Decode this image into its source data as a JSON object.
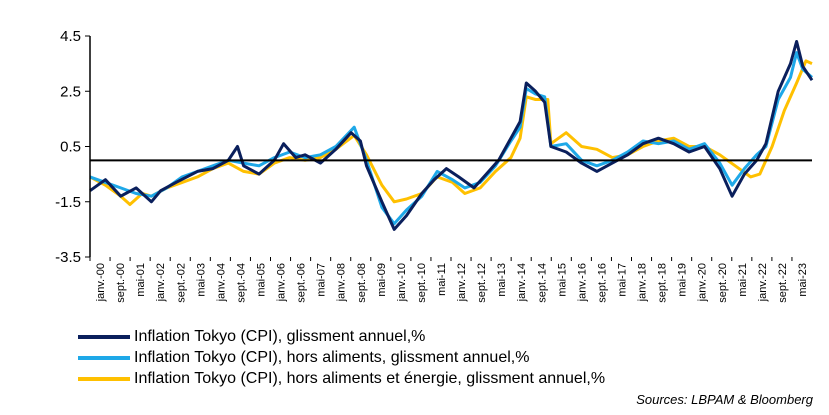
{
  "chart_data": {
    "type": "line",
    "title": "",
    "xlabel": "",
    "ylabel": "",
    "ylim": [
      -3.5,
      4.5
    ],
    "yticks": [
      -3.5,
      -1.5,
      0.5,
      2.5,
      4.5
    ],
    "ytick_labels": [
      "-3.5",
      "-1.5",
      "0.5",
      "2.5",
      "4.5"
    ],
    "x_range": [
      2000.0,
      2023.5
    ],
    "xtick_labels": [
      "janv.-00",
      "sept.-00",
      "mai-01",
      "janv.-02",
      "sept.-02",
      "mai-03",
      "janv.-04",
      "sept.-04",
      "mai-05",
      "janv.-06",
      "sept.-06",
      "mai-07",
      "janv.-08",
      "sept.-08",
      "mai-09",
      "janv.-10",
      "sept.-10",
      "mai-11",
      "janv.-12",
      "sept.-12",
      "mai-13",
      "janv.-14",
      "sept.-14",
      "mai-15",
      "janv.-16",
      "sept.-16",
      "mai-17",
      "janv.-18",
      "sept.-18",
      "mai-19",
      "janv.-20",
      "sept.-20",
      "mai-21",
      "janv.-22",
      "sept.-22",
      "mai-23"
    ],
    "reference_line": 0.0,
    "series": [
      {
        "name": "Inflation Tokyo (CPI), glissment annuel,%",
        "color": "#0a1f5c",
        "points": [
          [
            2000.0,
            -1.1
          ],
          [
            2000.5,
            -0.7
          ],
          [
            2001.0,
            -1.3
          ],
          [
            2001.5,
            -1.0
          ],
          [
            2002.0,
            -1.5
          ],
          [
            2002.3,
            -1.1
          ],
          [
            2002.8,
            -0.8
          ],
          [
            2003.5,
            -0.4
          ],
          [
            2004.0,
            -0.3
          ],
          [
            2004.5,
            0.0
          ],
          [
            2004.8,
            0.5
          ],
          [
            2005.0,
            -0.2
          ],
          [
            2005.5,
            -0.5
          ],
          [
            2006.0,
            0.0
          ],
          [
            2006.3,
            0.6
          ],
          [
            2006.7,
            0.1
          ],
          [
            2007.0,
            0.2
          ],
          [
            2007.5,
            -0.1
          ],
          [
            2008.0,
            0.4
          ],
          [
            2008.5,
            1.0
          ],
          [
            2008.8,
            0.7
          ],
          [
            2009.0,
            -0.2
          ],
          [
            2009.5,
            -1.5
          ],
          [
            2009.9,
            -2.5
          ],
          [
            2010.3,
            -2.0
          ],
          [
            2010.8,
            -1.2
          ],
          [
            2011.2,
            -0.7
          ],
          [
            2011.6,
            -0.3
          ],
          [
            2012.0,
            -0.6
          ],
          [
            2012.5,
            -1.0
          ],
          [
            2012.9,
            -0.5
          ],
          [
            2013.3,
            0.0
          ],
          [
            2013.7,
            0.8
          ],
          [
            2014.0,
            1.4
          ],
          [
            2014.2,
            2.8
          ],
          [
            2014.5,
            2.5
          ],
          [
            2014.8,
            2.1
          ],
          [
            2015.0,
            0.5
          ],
          [
            2015.5,
            0.3
          ],
          [
            2016.0,
            -0.1
          ],
          [
            2016.5,
            -0.4
          ],
          [
            2017.0,
            -0.1
          ],
          [
            2017.5,
            0.2
          ],
          [
            2018.0,
            0.6
          ],
          [
            2018.5,
            0.8
          ],
          [
            2019.0,
            0.6
          ],
          [
            2019.5,
            0.3
          ],
          [
            2020.0,
            0.5
          ],
          [
            2020.5,
            -0.3
          ],
          [
            2020.9,
            -1.3
          ],
          [
            2021.3,
            -0.5
          ],
          [
            2021.7,
            0.0
          ],
          [
            2022.0,
            0.6
          ],
          [
            2022.4,
            2.5
          ],
          [
            2022.8,
            3.5
          ],
          [
            2023.0,
            4.3
          ],
          [
            2023.2,
            3.4
          ],
          [
            2023.5,
            2.9
          ]
        ]
      },
      {
        "name": "Inflation Tokyo (CPI), hors aliments, glissment annuel,%",
        "color": "#1ea8e8",
        "points": [
          [
            2000.0,
            -0.6
          ],
          [
            2000.5,
            -0.8
          ],
          [
            2001.0,
            -1.0
          ],
          [
            2001.5,
            -1.2
          ],
          [
            2002.0,
            -1.3
          ],
          [
            2002.5,
            -1.0
          ],
          [
            2003.0,
            -0.6
          ],
          [
            2003.5,
            -0.4
          ],
          [
            2004.0,
            -0.2
          ],
          [
            2004.5,
            0.0
          ],
          [
            2005.0,
            -0.1
          ],
          [
            2005.5,
            -0.2
          ],
          [
            2006.0,
            0.1
          ],
          [
            2006.5,
            0.3
          ],
          [
            2007.0,
            0.1
          ],
          [
            2007.5,
            0.2
          ],
          [
            2008.0,
            0.5
          ],
          [
            2008.6,
            1.2
          ],
          [
            2009.0,
            0.0
          ],
          [
            2009.5,
            -1.7
          ],
          [
            2009.9,
            -2.3
          ],
          [
            2010.3,
            -1.8
          ],
          [
            2010.8,
            -1.3
          ],
          [
            2011.3,
            -0.4
          ],
          [
            2011.8,
            -0.7
          ],
          [
            2012.2,
            -1.0
          ],
          [
            2012.7,
            -0.8
          ],
          [
            2013.2,
            -0.2
          ],
          [
            2013.7,
            0.7
          ],
          [
            2014.0,
            1.2
          ],
          [
            2014.2,
            2.6
          ],
          [
            2014.5,
            2.4
          ],
          [
            2014.8,
            2.3
          ],
          [
            2015.0,
            0.5
          ],
          [
            2015.5,
            0.6
          ],
          [
            2016.0,
            0.0
          ],
          [
            2016.5,
            -0.2
          ],
          [
            2017.0,
            0.0
          ],
          [
            2017.5,
            0.3
          ],
          [
            2018.0,
            0.7
          ],
          [
            2018.5,
            0.6
          ],
          [
            2019.0,
            0.7
          ],
          [
            2019.5,
            0.4
          ],
          [
            2020.0,
            0.6
          ],
          [
            2020.5,
            -0.1
          ],
          [
            2020.9,
            -0.9
          ],
          [
            2021.3,
            -0.3
          ],
          [
            2021.7,
            0.2
          ],
          [
            2022.0,
            0.5
          ],
          [
            2022.4,
            2.2
          ],
          [
            2022.8,
            3.0
          ],
          [
            2023.0,
            3.9
          ],
          [
            2023.2,
            3.3
          ],
          [
            2023.5,
            3.0
          ]
        ]
      },
      {
        "name": "Inflation Tokyo (CPI), hors aliments et énergie, glissment annuel,%",
        "color": "#ffc000",
        "points": [
          [
            2000.0,
            -0.6
          ],
          [
            2000.5,
            -0.9
          ],
          [
            2001.0,
            -1.3
          ],
          [
            2001.3,
            -1.6
          ],
          [
            2001.7,
            -1.2
          ],
          [
            2002.0,
            -1.3
          ],
          [
            2002.5,
            -1.0
          ],
          [
            2003.0,
            -0.8
          ],
          [
            2003.5,
            -0.6
          ],
          [
            2004.0,
            -0.3
          ],
          [
            2004.5,
            -0.1
          ],
          [
            2005.0,
            -0.4
          ],
          [
            2005.5,
            -0.5
          ],
          [
            2006.0,
            -0.1
          ],
          [
            2006.5,
            0.1
          ],
          [
            2007.0,
            0.0
          ],
          [
            2007.5,
            0.1
          ],
          [
            2008.0,
            0.4
          ],
          [
            2008.6,
            0.9
          ],
          [
            2009.0,
            0.2
          ],
          [
            2009.5,
            -0.9
          ],
          [
            2009.9,
            -1.5
          ],
          [
            2010.3,
            -1.4
          ],
          [
            2010.8,
            -1.2
          ],
          [
            2011.3,
            -0.6
          ],
          [
            2011.8,
            -0.8
          ],
          [
            2012.2,
            -1.2
          ],
          [
            2012.7,
            -1.0
          ],
          [
            2013.2,
            -0.4
          ],
          [
            2013.7,
            0.1
          ],
          [
            2014.0,
            0.8
          ],
          [
            2014.2,
            2.3
          ],
          [
            2014.5,
            2.2
          ],
          [
            2014.9,
            2.2
          ],
          [
            2015.0,
            0.6
          ],
          [
            2015.5,
            1.0
          ],
          [
            2016.0,
            0.5
          ],
          [
            2016.5,
            0.4
          ],
          [
            2017.0,
            0.1
          ],
          [
            2017.5,
            0.2
          ],
          [
            2018.0,
            0.5
          ],
          [
            2018.5,
            0.7
          ],
          [
            2019.0,
            0.8
          ],
          [
            2019.5,
            0.5
          ],
          [
            2020.0,
            0.5
          ],
          [
            2020.5,
            0.2
          ],
          [
            2021.0,
            -0.2
          ],
          [
            2021.5,
            -0.6
          ],
          [
            2021.8,
            -0.5
          ],
          [
            2022.2,
            0.5
          ],
          [
            2022.6,
            1.8
          ],
          [
            2023.0,
            2.8
          ],
          [
            2023.3,
            3.6
          ],
          [
            2023.5,
            3.5
          ]
        ]
      }
    ]
  },
  "legend": {
    "items": [
      {
        "label": "Inflation Tokyo (CPI), glissment annuel,%",
        "color": "#0a1f5c"
      },
      {
        "label": "Inflation Tokyo (CPI), hors aliments, glissment annuel,%",
        "color": "#1ea8e8"
      },
      {
        "label": "Inflation Tokyo (CPI), hors aliments et énergie, glissment annuel,%",
        "color": "#ffc000"
      }
    ]
  },
  "source": "Sources: LBPAM & Bloomberg"
}
